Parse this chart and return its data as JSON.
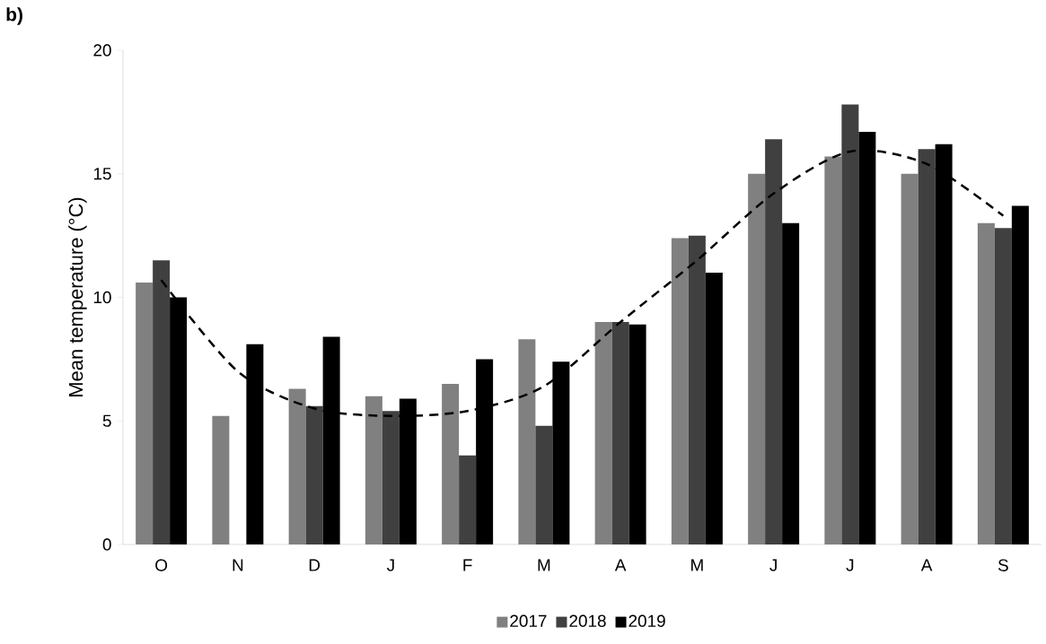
{
  "chart_data": {
    "type": "bar",
    "title": "b)",
    "ylabel": "Mean temperature (°C)",
    "categories": [
      "O",
      "N",
      "D",
      "J",
      "F",
      "M",
      "A",
      "M",
      "J",
      "J",
      "A",
      "S"
    ],
    "ylim": [
      0,
      20
    ],
    "yticks": [
      0,
      5,
      10,
      15,
      20
    ],
    "grid": false,
    "legend": "bottom",
    "series": [
      {
        "name": "2017",
        "color": "#808080",
        "values": [
          10.6,
          5.2,
          6.3,
          6.0,
          6.5,
          8.3,
          9.0,
          12.4,
          15.0,
          15.7,
          15.0,
          13.0
        ]
      },
      {
        "name": "2018",
        "color": "#404040",
        "values": [
          11.5,
          null,
          5.6,
          5.4,
          3.6,
          4.8,
          9.0,
          12.5,
          16.4,
          17.8,
          16.0,
          12.8
        ]
      },
      {
        "name": "2019",
        "color": "#000000",
        "values": [
          10.0,
          8.1,
          8.4,
          5.9,
          7.5,
          7.4,
          8.9,
          11.0,
          13.0,
          16.7,
          16.2,
          13.7
        ]
      },
      {
        "type": "line",
        "line_style": "dashed",
        "color": "#000000",
        "values": [
          10.7,
          7.0,
          5.5,
          5.2,
          5.4,
          6.4,
          9.0,
          11.5,
          14.2,
          15.9,
          15.4,
          13.3
        ]
      }
    ]
  }
}
